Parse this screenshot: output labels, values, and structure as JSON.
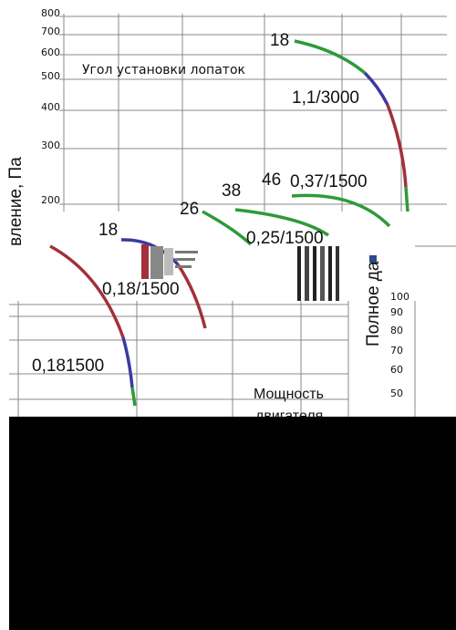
{
  "top_axis": {
    "ticks": [
      800,
      700,
      600,
      500,
      400,
      300,
      200
    ]
  },
  "angle_label": "Угол установки лопаток",
  "y_axis_label": "вление, Па",
  "curve_labels": [
    "18",
    "1,1/3000",
    "46",
    "0,37/1500",
    "38",
    "26",
    "0,25/1500",
    "18",
    "0,18/1500",
    "0,181500"
  ],
  "power_label": [
    "Мощность",
    "двигателя"
  ],
  "right_axis": {
    "label": "Полное да",
    "ticks": [
      100,
      90,
      80,
      70,
      60,
      50
    ]
  }
}
